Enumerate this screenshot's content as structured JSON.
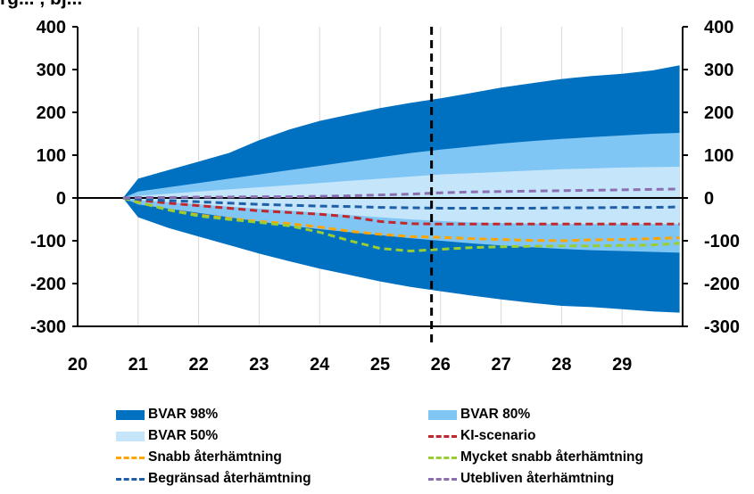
{
  "cut_title": "rg... , bj...",
  "chart_data": {
    "type": "area",
    "x_ticks": [
      "20",
      "21",
      "22",
      "23",
      "24",
      "25",
      "26",
      "27",
      "28",
      "29"
    ],
    "x_range": [
      2020.0,
      2030.0
    ],
    "ylim": [
      -300,
      400
    ],
    "y_ticks_left": [
      "400",
      "300",
      "200",
      "100",
      "0",
      "-100",
      "-200",
      "-300"
    ],
    "y_ticks_right": [
      "400",
      "300",
      "200",
      "100",
      "0",
      "-100",
      "-200",
      "-300"
    ],
    "forecast_start": 2025.85,
    "bands": [
      {
        "name": "BVAR 98%",
        "color": "#0070c0",
        "x": [
          2020.75,
          2021.0,
          2021.5,
          2022.0,
          2022.5,
          2023.0,
          2023.5,
          2024.0,
          2024.5,
          2025.0,
          2025.5,
          2026.0,
          2026.5,
          2027.0,
          2027.5,
          2028.0,
          2028.5,
          2029.0,
          2029.5,
          2029.95
        ],
        "upper": [
          0,
          45,
          65,
          85,
          105,
          135,
          160,
          180,
          195,
          210,
          222,
          233,
          245,
          258,
          268,
          278,
          285,
          290,
          298,
          310
        ],
        "lower": [
          0,
          -45,
          -70,
          -90,
          -110,
          -130,
          -148,
          -165,
          -180,
          -195,
          -208,
          -218,
          -228,
          -237,
          -245,
          -252,
          -255,
          -260,
          -265,
          -268
        ]
      },
      {
        "name": "BVAR 80%",
        "color": "#7fc6f5",
        "x": [
          2020.75,
          2021.0,
          2021.5,
          2022.0,
          2022.5,
          2023.0,
          2023.5,
          2024.0,
          2024.5,
          2025.0,
          2025.5,
          2026.0,
          2026.5,
          2027.0,
          2027.5,
          2028.0,
          2028.5,
          2029.0,
          2029.5,
          2029.95
        ],
        "upper": [
          0,
          15,
          25,
          35,
          45,
          55,
          65,
          75,
          85,
          95,
          105,
          113,
          120,
          127,
          133,
          138,
          142,
          146,
          150,
          152
        ],
        "lower": [
          0,
          -15,
          -25,
          -35,
          -45,
          -55,
          -65,
          -73,
          -80,
          -87,
          -94,
          -100,
          -106,
          -111,
          -115,
          -119,
          -122,
          -124,
          -126,
          -128
        ]
      },
      {
        "name": "BVAR 50%",
        "color": "#c5e5fb",
        "x": [
          2020.75,
          2021.0,
          2021.5,
          2022.0,
          2022.5,
          2023.0,
          2023.5,
          2024.0,
          2024.5,
          2025.0,
          2025.5,
          2026.0,
          2026.5,
          2027.0,
          2027.5,
          2028.0,
          2028.5,
          2029.0,
          2029.5,
          2029.95
        ],
        "upper": [
          0,
          5,
          10,
          15,
          20,
          25,
          30,
          35,
          40,
          45,
          50,
          55,
          58,
          61,
          64,
          67,
          69,
          71,
          72,
          73
        ],
        "lower": [
          0,
          -5,
          -10,
          -15,
          -20,
          -25,
          -30,
          -35,
          -40,
          -45,
          -50,
          -54,
          -57,
          -59,
          -60,
          -61,
          -61,
          -61,
          -61,
          -61
        ]
      }
    ],
    "series": [
      {
        "name": "KI-scenario",
        "color": "#c0282d",
        "x": [
          2020.75,
          2021.0,
          2021.5,
          2022.0,
          2022.5,
          2023.0,
          2023.5,
          2024.0,
          2024.5,
          2025.0,
          2025.5,
          2026.0,
          2026.5,
          2027.0,
          2027.5,
          2028.0,
          2028.5,
          2029.0,
          2029.5,
          2029.95
        ],
        "values": [
          0,
          -5,
          -12,
          -18,
          -24,
          -30,
          -34,
          -38,
          -44,
          -55,
          -60,
          -61,
          -61,
          -61,
          -61,
          -61,
          -61,
          -61,
          -61,
          -61
        ]
      },
      {
        "name": "Snabb återhämtning",
        "color": "#ffa500",
        "x": [
          2020.75,
          2021.0,
          2021.5,
          2022.0,
          2022.5,
          2023.0,
          2023.5,
          2024.0,
          2024.5,
          2025.0,
          2025.5,
          2026.0,
          2026.5,
          2027.0,
          2027.5,
          2028.0,
          2028.5,
          2029.0,
          2029.5,
          2029.95
        ],
        "values": [
          0,
          -10,
          -28,
          -40,
          -48,
          -55,
          -60,
          -68,
          -78,
          -85,
          -90,
          -92,
          -95,
          -97,
          -99,
          -100,
          -98,
          -97,
          -95,
          -93
        ]
      },
      {
        "name": "Mycket snabb återhämtning",
        "color": "#9acd32",
        "x": [
          2020.75,
          2021.0,
          2021.5,
          2022.0,
          2022.5,
          2023.0,
          2023.5,
          2024.0,
          2024.5,
          2025.0,
          2025.5,
          2026.0,
          2026.5,
          2027.0,
          2027.5,
          2028.0,
          2028.5,
          2029.0,
          2029.5,
          2029.95
        ],
        "values": [
          0,
          -10,
          -28,
          -42,
          -50,
          -57,
          -65,
          -80,
          -100,
          -118,
          -124,
          -120,
          -116,
          -114,
          -113,
          -112,
          -112,
          -111,
          -110,
          -106
        ]
      },
      {
        "name": "Begränsad återhämtning",
        "color": "#1f5fa8",
        "x": [
          2020.75,
          2021.0,
          2021.5,
          2022.0,
          2022.5,
          2023.0,
          2023.5,
          2024.0,
          2024.5,
          2025.0,
          2025.5,
          2026.0,
          2026.5,
          2027.0,
          2027.5,
          2028.0,
          2028.5,
          2029.0,
          2029.5,
          2029.95
        ],
        "values": [
          0,
          -3,
          -6,
          -9,
          -12,
          -15,
          -17,
          -19,
          -20,
          -22,
          -23,
          -24,
          -24,
          -24,
          -24,
          -23,
          -23,
          -22,
          -22,
          -21
        ]
      },
      {
        "name": "Utebliven återhämtning",
        "color": "#8b6fb0",
        "x": [
          2020.75,
          2021.0,
          2021.5,
          2022.0,
          2022.5,
          2023.0,
          2023.5,
          2024.0,
          2024.5,
          2025.0,
          2025.5,
          2026.0,
          2026.5,
          2027.0,
          2027.5,
          2028.0,
          2028.5,
          2029.0,
          2029.5,
          2029.95
        ],
        "values": [
          0,
          1,
          1,
          2,
          2,
          3,
          3,
          4,
          5,
          7,
          9,
          12,
          14,
          15,
          16,
          17,
          18,
          19,
          20,
          21
        ]
      }
    ],
    "grid": "vertical",
    "legend_position": "bottom"
  },
  "legend": {
    "items": [
      {
        "label": "BVAR 98%",
        "kind": "box",
        "color": "#0070c0"
      },
      {
        "label": "BVAR 80%",
        "kind": "box",
        "color": "#7fc6f5"
      },
      {
        "label": "BVAR 50%",
        "kind": "box",
        "color": "#c5e5fb"
      },
      {
        "label": "KI-scenario",
        "kind": "dash",
        "color": "#c0282d"
      },
      {
        "label": "Snabb återhämtning",
        "kind": "dash",
        "color": "#ffa500"
      },
      {
        "label": "Mycket snabb återhämtning",
        "kind": "dash",
        "color": "#9acd32"
      },
      {
        "label": "Begränsad återhämtning",
        "kind": "dash",
        "color": "#1f5fa8"
      },
      {
        "label": "Utebliven återhämtning",
        "kind": "dash",
        "color": "#8b6fb0"
      }
    ]
  }
}
